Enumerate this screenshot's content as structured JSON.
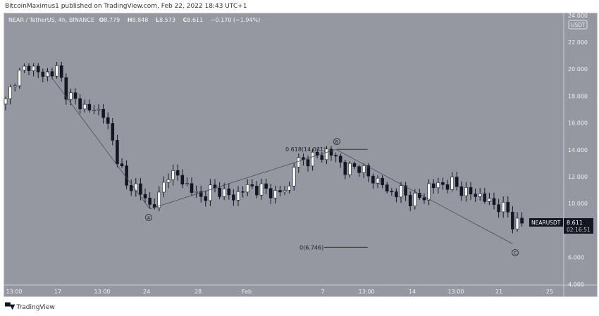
{
  "header": {
    "published": "BitcoinMaximus1 published on TradingView.com, Feb 22, 2022 18:43 UTC+1"
  },
  "legend": {
    "symbol": "NEAR / TetherUS, 4h, BINANCE",
    "o_label": "O",
    "o": "8.779",
    "h_label": "H",
    "h": "8.848",
    "l_label": "L",
    "l": "8.573",
    "c_label": "C",
    "c": "8.611",
    "change": "−0.170 (−1.94%)"
  },
  "price_axis": {
    "currency": "USDT",
    "ticks": [
      "24.000",
      "22.000",
      "20.000",
      "18.000",
      "16.000",
      "14.000",
      "12.000",
      "10.000",
      "6.000",
      "4.000"
    ]
  },
  "time_axis": {
    "ticks": [
      "13:00",
      "17",
      "13:00",
      "24",
      "28",
      "Feb",
      "7",
      "13:00",
      "14",
      "13:00",
      "21",
      "25"
    ]
  },
  "last_price": {
    "symbol": "NEARUSDT",
    "price": "8.611",
    "countdown": "02:16:51"
  },
  "annotations": {
    "fib_618": "0.618(14.031)",
    "fib_0": "0(6.746)",
    "wave_a": "A",
    "wave_b": "B",
    "wave_c": "C"
  },
  "footer": {
    "brand": "TradingView",
    "logo": "TV"
  },
  "colors": {
    "bg": "#9598a1",
    "up": "#ffffff",
    "down": "#131722"
  },
  "chart_data": {
    "type": "candlestick",
    "title": "NEAR / TetherUS, 4h, BINANCE",
    "ylim": [
      4,
      24
    ],
    "keypoints_close": [
      [
        0,
        17.6
      ],
      [
        2,
        19.3
      ],
      [
        5,
        20.3
      ],
      [
        8,
        19.5
      ],
      [
        11,
        20.0
      ],
      [
        13,
        18.3
      ],
      [
        15,
        17.6
      ],
      [
        18,
        17.0
      ],
      [
        21,
        16.8
      ],
      [
        23,
        14.5
      ],
      [
        25,
        12.5
      ],
      [
        26,
        11.2
      ],
      [
        28,
        11.3
      ],
      [
        31,
        9.8
      ],
      [
        33,
        10.5
      ],
      [
        35,
        12.3
      ],
      [
        37,
        12.0
      ],
      [
        40,
        11.0
      ],
      [
        42,
        10.4
      ],
      [
        44,
        11.0
      ],
      [
        46,
        11.0
      ],
      [
        49,
        10.4
      ],
      [
        51,
        11.1
      ],
      [
        53,
        11.2
      ],
      [
        56,
        11.0
      ],
      [
        58,
        10.7
      ],
      [
        61,
        11.2
      ],
      [
        62,
        13.0
      ],
      [
        65,
        13.3
      ],
      [
        67,
        13.5
      ],
      [
        69,
        13.8
      ],
      [
        71,
        13.5
      ],
      [
        73,
        12.5
      ],
      [
        76,
        12.8
      ],
      [
        78,
        12.0
      ],
      [
        81,
        11.5
      ],
      [
        82,
        10.8
      ],
      [
        85,
        10.9
      ],
      [
        87,
        10.3
      ],
      [
        90,
        10.5
      ],
      [
        91,
        11.3
      ],
      [
        94,
        11.4
      ],
      [
        96,
        11.5
      ],
      [
        99,
        10.8
      ],
      [
        102,
        10.6
      ],
      [
        104,
        10.1
      ],
      [
        106,
        9.8
      ],
      [
        108,
        9.4
      ],
      [
        109,
        8.5
      ],
      [
        111,
        8.6
      ]
    ],
    "wave_lines": [
      [
        [
          9,
          19.8
        ],
        [
          31,
          9.6
        ]
      ],
      [
        [
          31,
          9.6
        ],
        [
          71,
          14.03
        ]
      ],
      [
        [
          71,
          14.03
        ],
        [
          109,
          7.0
        ]
      ]
    ],
    "fib_levels": [
      {
        "label": "0.618(14.031)",
        "value": 14.031
      },
      {
        "label": "0(6.746)",
        "value": 6.746
      }
    ]
  }
}
